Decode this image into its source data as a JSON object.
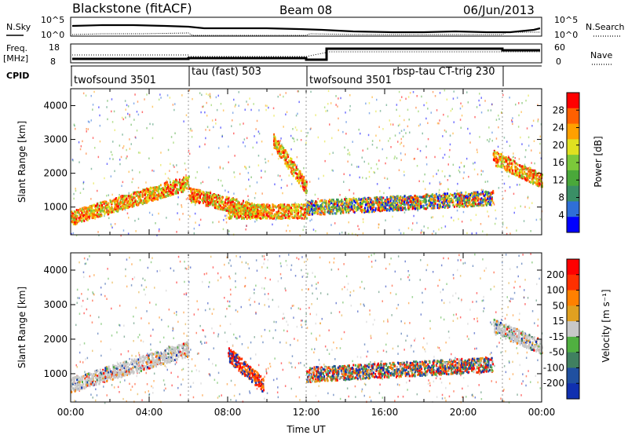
{
  "header": {
    "station": "Blackstone (fitACF)",
    "beam": "Beam 08",
    "date": "06/Jun/2013"
  },
  "summary_panels": {
    "nsky_label": "N.Sky",
    "nsky_ticks": [
      "10^5",
      "10^0"
    ],
    "nsearch_label": "N.Search",
    "nsearch_ticks": [
      "10^5",
      "10^0"
    ],
    "freq_label": [
      "Freq.",
      "[MHz]"
    ],
    "freq_ticks": [
      "18",
      "8"
    ],
    "nave_label": "Nave",
    "nave_ticks": [
      "60",
      "0"
    ],
    "cpid_label": "CPID"
  },
  "cpid_segments": [
    {
      "label": "twofsound 3501",
      "start_h": 0
    },
    {
      "label": "tau (fast) 503",
      "start_h": 6
    },
    {
      "label": "twofsound 3501",
      "start_h": 12
    },
    {
      "label": "rbsp-tau CT-trig 230",
      "start_h": 16
    },
    {
      "label": "",
      "start_h": 22
    }
  ],
  "chart_data": [
    {
      "type": "heatmap",
      "parameter": "Power",
      "ylabel": "Slant Range [km]",
      "xlabel": "",
      "xlim": [
        0,
        24
      ],
      "ylim": [
        180,
        4500
      ],
      "yticks": [
        "1000",
        "2000",
        "3000",
        "4000"
      ],
      "colorbar": {
        "label": "Power [dB]",
        "ticks": [
          "28",
          "24",
          "20",
          "16",
          "12",
          "8",
          "4"
        ],
        "colors": [
          "#0000ff",
          "#2f6fd8",
          "#3a8f66",
          "#4aa83a",
          "#7cc83a",
          "#e0e020",
          "#ffa000",
          "#ff6000",
          "#ff0000"
        ]
      },
      "echo_bands": [
        {
          "t_start": 0.0,
          "t_end": 6.0,
          "range_start": 700,
          "range_end": 1750,
          "level": "high"
        },
        {
          "t_start": 6.0,
          "t_end": 9.5,
          "range_start": 1400,
          "range_end": 900,
          "level": "high"
        },
        {
          "t_start": 8.0,
          "t_end": 12.0,
          "range_start": 900,
          "range_end": 900,
          "level": "high"
        },
        {
          "t_start": 10.3,
          "t_end": 12.0,
          "range_start": 3000,
          "range_end": 1600,
          "level": "high"
        },
        {
          "t_start": 12.0,
          "t_end": 21.5,
          "range_start": 1000,
          "range_end": 1300,
          "level": "medium"
        },
        {
          "t_start": 21.5,
          "t_end": 24.0,
          "range_start": 2500,
          "range_end": 1800,
          "level": "high"
        }
      ]
    },
    {
      "type": "heatmap",
      "parameter": "Velocity",
      "ylabel": "Slant Range [km]",
      "xlabel": "Time UT",
      "xlim": [
        0,
        24
      ],
      "ylim": [
        180,
        4500
      ],
      "xticks": [
        "00:00",
        "04:00",
        "08:00",
        "12:00",
        "16:00",
        "20:00",
        "00:00"
      ],
      "yticks": [
        "1000",
        "2000",
        "3000",
        "4000"
      ],
      "colorbar": {
        "label": "Velocity [m s⁻¹]",
        "ticks": [
          "200",
          "100",
          "50",
          "15",
          "-15",
          "-50",
          "-100",
          "-200"
        ],
        "colors": [
          "#1030b0",
          "#2050a0",
          "#408060",
          "#50b040",
          "#c8c8c8",
          "#e0a020",
          "#ff8000",
          "#ff3000",
          "#ff0000"
        ]
      },
      "echo_bands": [
        {
          "t_start": 0.0,
          "t_end": 6.0,
          "range_start": 700,
          "range_end": 1750,
          "level": "ground-scatter"
        },
        {
          "t_start": 8.0,
          "t_end": 9.8,
          "range_start": 1600,
          "range_end": 700,
          "level": "negative"
        },
        {
          "t_start": 12.0,
          "t_end": 21.5,
          "range_start": 1000,
          "range_end": 1300,
          "level": "mixed"
        },
        {
          "t_start": 21.5,
          "t_end": 24.0,
          "range_start": 2400,
          "range_end": 1800,
          "level": "ground-scatter"
        }
      ]
    }
  ]
}
